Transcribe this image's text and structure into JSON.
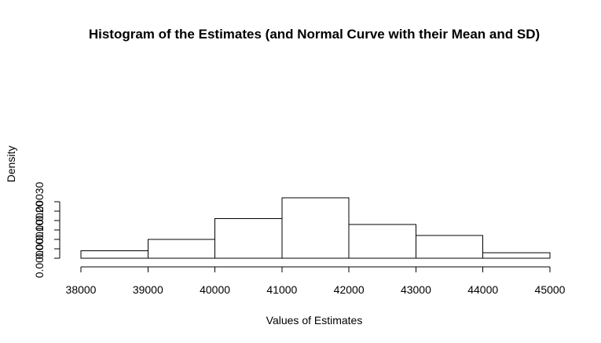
{
  "chart_data": {
    "type": "bar",
    "title": "Histogram of the Estimates (and Normal Curve with their Mean and SD)",
    "xlabel": "Values of Estimates",
    "ylabel": "Density",
    "bins": [
      {
        "start": 38000,
        "end": 39000,
        "density": 4e-05
      },
      {
        "start": 39000,
        "end": 40000,
        "density": 0.0001
      },
      {
        "start": 40000,
        "end": 41000,
        "density": 0.00021
      },
      {
        "start": 41000,
        "end": 42000,
        "density": 0.00032
      },
      {
        "start": 42000,
        "end": 43000,
        "density": 0.00018
      },
      {
        "start": 43000,
        "end": 44000,
        "density": 0.00012
      },
      {
        "start": 44000,
        "end": 45000,
        "density": 3e-05
      }
    ],
    "xlim": [
      38000,
      45000
    ],
    "ylim": [
      0,
      0.00032
    ],
    "x_ticks": [
      38000,
      39000,
      40000,
      41000,
      42000,
      43000,
      44000,
      45000
    ],
    "x_tick_labels": [
      "38000",
      "39000",
      "40000",
      "41000",
      "42000",
      "43000",
      "44000",
      "45000"
    ],
    "y_ticks": [
      0,
      5e-05,
      0.0001,
      0.00015,
      0.0002,
      0.00025,
      0.0003
    ],
    "y_tick_labels": [
      "0.00000",
      "",
      "0.00010",
      "",
      "0.00020",
      "",
      "0.00030"
    ],
    "grid": false,
    "legend": "none",
    "colors": {
      "bar_fill": "#ffffff",
      "stroke": "#000000"
    }
  }
}
